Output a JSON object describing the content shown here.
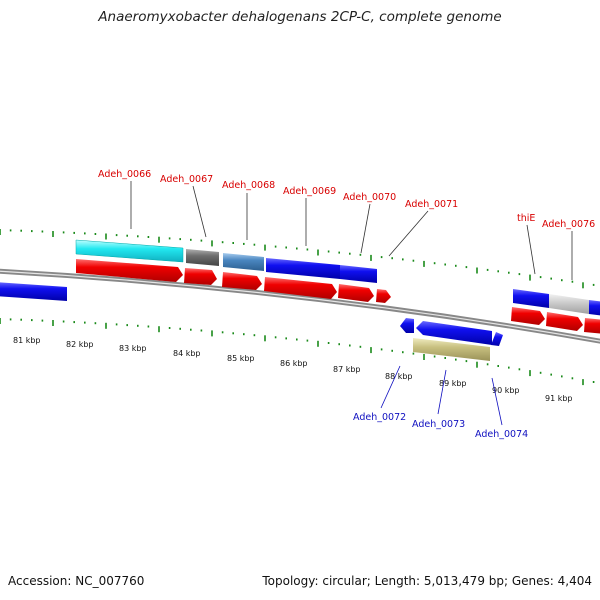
{
  "title": "Anaeromyxobacter dehalogenans 2CP-C, complete genome",
  "footer": {
    "accession": "Accession: NC_007760",
    "info": "Topology: circular; Length: 5,013,479 bp; Genes: 4,404"
  },
  "colors": {
    "cds_blue": "#0a0ae6",
    "rna_red": "#e60000",
    "cyan": "#22e8f0",
    "gray_dark": "#6e6e6e",
    "steel_blue": "#4a86c0",
    "light_gray": "#c8c8c8",
    "khaki": "#c8c080",
    "tick_green": "#1a8a1a",
    "label_red": "#d80000",
    "label_blue": "#1010c0",
    "backbone": "#888888"
  },
  "ticks": {
    "kbp_labels": [
      "81 kbp",
      "82 kbp",
      "83 kbp",
      "84 kbp",
      "85 kbp",
      "86 kbp",
      "87 kbp",
      "88 kbp",
      "89 kbp",
      "90 kbp",
      "91 kbp"
    ]
  },
  "gene_labels_top": [
    "Adeh_0066",
    "Adeh_0067",
    "Adeh_0068",
    "Adeh_0069",
    "Adeh_0070",
    "Adeh_0071",
    "thiE",
    "Adeh_0076"
  ],
  "gene_labels_bottom": [
    "Adeh_0072",
    "Adeh_0073",
    "Adeh_0074"
  ]
}
